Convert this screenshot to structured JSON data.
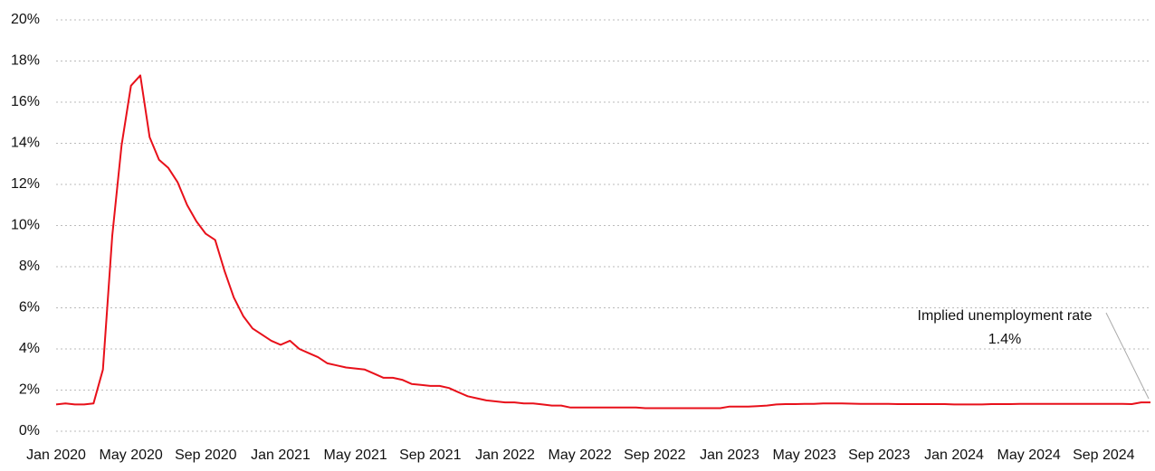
{
  "chart_data": {
    "type": "line",
    "categories": [
      "Jan 2020",
      null,
      null,
      null,
      null,
      null,
      null,
      null,
      "May 2020",
      null,
      null,
      null,
      null,
      null,
      null,
      null,
      "Sep 2020",
      null,
      null,
      null,
      null,
      null,
      null,
      null,
      "Jan 2021",
      null,
      null,
      null,
      null,
      null,
      null,
      null,
      "May 2021",
      null,
      null,
      null,
      null,
      null,
      null,
      null,
      "Sep 2021",
      null,
      null,
      null,
      null,
      null,
      null,
      null,
      "Jan 2022",
      null,
      null,
      null,
      null,
      null,
      null,
      null,
      "May 2022",
      null,
      null,
      null,
      null,
      null,
      null,
      null,
      "Sep 2022",
      null,
      null,
      null,
      null,
      null,
      null,
      null,
      "Jan 2023",
      null,
      null,
      null,
      null,
      null,
      null,
      null,
      "May 2023",
      null,
      null,
      null,
      null,
      null,
      null,
      null,
      "Sep 2023",
      null,
      null,
      null,
      null,
      null,
      null,
      null,
      "Jan 2024",
      null,
      null,
      null,
      null,
      null,
      null,
      null,
      "May 2024",
      null,
      null,
      null,
      null,
      null,
      null,
      null,
      "Sep 2024",
      null,
      null,
      null,
      null,
      null
    ],
    "series": [
      {
        "color": "#e8101a",
        "values": [
          1.3,
          1.35,
          1.3,
          1.3,
          1.35,
          3.0,
          9.5,
          13.9,
          16.8,
          17.3,
          14.3,
          13.2,
          12.8,
          12.1,
          11.0,
          10.2,
          9.6,
          9.3,
          7.8,
          6.5,
          5.6,
          5.0,
          4.7,
          4.4,
          4.2,
          4.4,
          4.0,
          3.8,
          3.6,
          3.3,
          3.2,
          3.1,
          3.05,
          3.0,
          2.8,
          2.6,
          2.6,
          2.5,
          2.3,
          2.25,
          2.2,
          2.2,
          2.1,
          1.9,
          1.7,
          1.6,
          1.5,
          1.45,
          1.4,
          1.4,
          1.35,
          1.35,
          1.3,
          1.25,
          1.25,
          1.15,
          1.15,
          1.15,
          1.15,
          1.15,
          1.15,
          1.15,
          1.15,
          1.12,
          1.12,
          1.12,
          1.12,
          1.12,
          1.12,
          1.12,
          1.12,
          1.12,
          1.2,
          1.2,
          1.2,
          1.22,
          1.25,
          1.3,
          1.32,
          1.32,
          1.33,
          1.33,
          1.35,
          1.35,
          1.35,
          1.34,
          1.33,
          1.33,
          1.33,
          1.33,
          1.32,
          1.32,
          1.32,
          1.32,
          1.32,
          1.32,
          1.3,
          1.3,
          1.3,
          1.3,
          1.32,
          1.32,
          1.32,
          1.33,
          1.33,
          1.33,
          1.33,
          1.33,
          1.33,
          1.33,
          1.33,
          1.33,
          1.33,
          1.33,
          1.33,
          1.32,
          1.4,
          1.4
        ]
      }
    ],
    "ylim": [
      0,
      20
    ],
    "yticks": [
      {
        "value": 0,
        "label": "0%"
      },
      {
        "value": 2,
        "label": "2%"
      },
      {
        "value": 4,
        "label": "4%"
      },
      {
        "value": 6,
        "label": "6%"
      },
      {
        "value": 8,
        "label": "8%"
      },
      {
        "value": 10,
        "label": "10%"
      },
      {
        "value": 12,
        "label": "12%"
      },
      {
        "value": 14,
        "label": "14%"
      },
      {
        "value": 16,
        "label": "16%"
      },
      {
        "value": 18,
        "label": "18%"
      },
      {
        "value": 20,
        "label": "20%"
      }
    ],
    "grid": true,
    "annotation": {
      "text": "Implied unemployment rate",
      "value_label": "1.4%"
    }
  }
}
